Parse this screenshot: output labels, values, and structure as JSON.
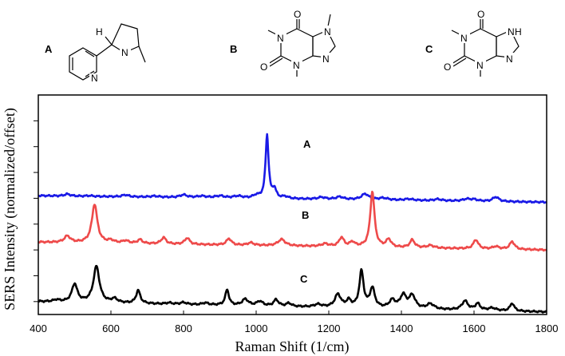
{
  "structures": [
    {
      "label": "A",
      "atoms": {
        "h": "H",
        "n_ring": "N",
        "n_pyrr": "N"
      }
    },
    {
      "label": "B",
      "atoms": {
        "o_top": "O",
        "o_left": "O",
        "n1": "N",
        "n3": "N",
        "n7": "N",
        "n9": "N"
      }
    },
    {
      "label": "C",
      "atoms": {
        "o_top": "O",
        "o_left": "O",
        "n1": "N",
        "n3": "N",
        "nh": "H",
        "n7": "N",
        "n9": "N"
      }
    }
  ],
  "chart_data": {
    "type": "line",
    "xlabel": "Raman Shift (1/cm)",
    "ylabel": "SERS Intensity (normalized/offset)",
    "xlim": [
      400,
      1800
    ],
    "xticks": [
      400,
      600,
      800,
      1000,
      1200,
      1400,
      1600,
      1800
    ],
    "ylim": [
      0,
      1.7
    ],
    "yticks": [
      0.1,
      0.3,
      0.5,
      0.7,
      0.9,
      1.1,
      1.3,
      1.5
    ],
    "grid": false,
    "series": [
      {
        "name": "A",
        "color": "#1a1ae6",
        "baseline": [
          0.92,
          0.87
        ],
        "peaks": [
          [
            480,
            0.015,
            10
          ],
          [
            540,
            0.005,
            10
          ],
          [
            640,
            0.015,
            10
          ],
          [
            720,
            0.008,
            15
          ],
          [
            800,
            0.02,
            12
          ],
          [
            850,
            0.012,
            15
          ],
          [
            900,
            0.015,
            15
          ],
          [
            950,
            0.015,
            15
          ],
          [
            1000,
            0.02,
            10
          ],
          [
            1030,
            0.49,
            5
          ],
          [
            1050,
            0.07,
            6
          ],
          [
            1080,
            0.015,
            10
          ],
          [
            1180,
            0.015,
            12
          ],
          [
            1230,
            0.02,
            12
          ],
          [
            1300,
            0.045,
            12
          ],
          [
            1350,
            0.015,
            15
          ],
          [
            1420,
            0.01,
            15
          ],
          [
            1500,
            0.012,
            12
          ],
          [
            1580,
            0.015,
            12
          ],
          [
            1600,
            0.012,
            12
          ],
          [
            1660,
            0.035,
            10
          ]
        ]
      },
      {
        "name": "B",
        "color": "#ee4a4a",
        "baseline": [
          0.56,
          0.5
        ],
        "peaks": [
          [
            480,
            0.05,
            10
          ],
          [
            555,
            0.3,
            9
          ],
          [
            600,
            0.02,
            10
          ],
          [
            640,
            0.02,
            10
          ],
          [
            680,
            0.03,
            8
          ],
          [
            745,
            0.05,
            8
          ],
          [
            810,
            0.05,
            8
          ],
          [
            925,
            0.05,
            8
          ],
          [
            985,
            0.02,
            10
          ],
          [
            1070,
            0.05,
            12
          ],
          [
            1190,
            0.02,
            12
          ],
          [
            1235,
            0.07,
            8
          ],
          [
            1265,
            0.035,
            8
          ],
          [
            1320,
            0.43,
            7
          ],
          [
            1365,
            0.06,
            8
          ],
          [
            1430,
            0.06,
            8
          ],
          [
            1480,
            0.02,
            12
          ],
          [
            1605,
            0.07,
            8
          ],
          [
            1660,
            0.02,
            10
          ],
          [
            1705,
            0.06,
            8
          ]
        ]
      },
      {
        "name": "C",
        "color": "#000000",
        "baseline": [
          0.1,
          0.02
        ],
        "peaks": [
          [
            450,
            0.015,
            10
          ],
          [
            500,
            0.14,
            9
          ],
          [
            560,
            0.28,
            10
          ],
          [
            610,
            0.03,
            10
          ],
          [
            675,
            0.1,
            7
          ],
          [
            760,
            0.01,
            10
          ],
          [
            800,
            0.015,
            10
          ],
          [
            860,
            0.015,
            10
          ],
          [
            920,
            0.12,
            6
          ],
          [
            970,
            0.05,
            10
          ],
          [
            1010,
            0.035,
            10
          ],
          [
            1055,
            0.05,
            8
          ],
          [
            1090,
            0.025,
            8
          ],
          [
            1170,
            0.02,
            12
          ],
          [
            1225,
            0.1,
            10
          ],
          [
            1255,
            0.05,
            8
          ],
          [
            1290,
            0.28,
            7
          ],
          [
            1320,
            0.15,
            8
          ],
          [
            1375,
            0.06,
            10
          ],
          [
            1405,
            0.1,
            10
          ],
          [
            1430,
            0.1,
            10
          ],
          [
            1480,
            0.04,
            12
          ],
          [
            1575,
            0.07,
            10
          ],
          [
            1610,
            0.05,
            8
          ],
          [
            1650,
            0.02,
            12
          ],
          [
            1705,
            0.06,
            7
          ]
        ]
      }
    ]
  }
}
